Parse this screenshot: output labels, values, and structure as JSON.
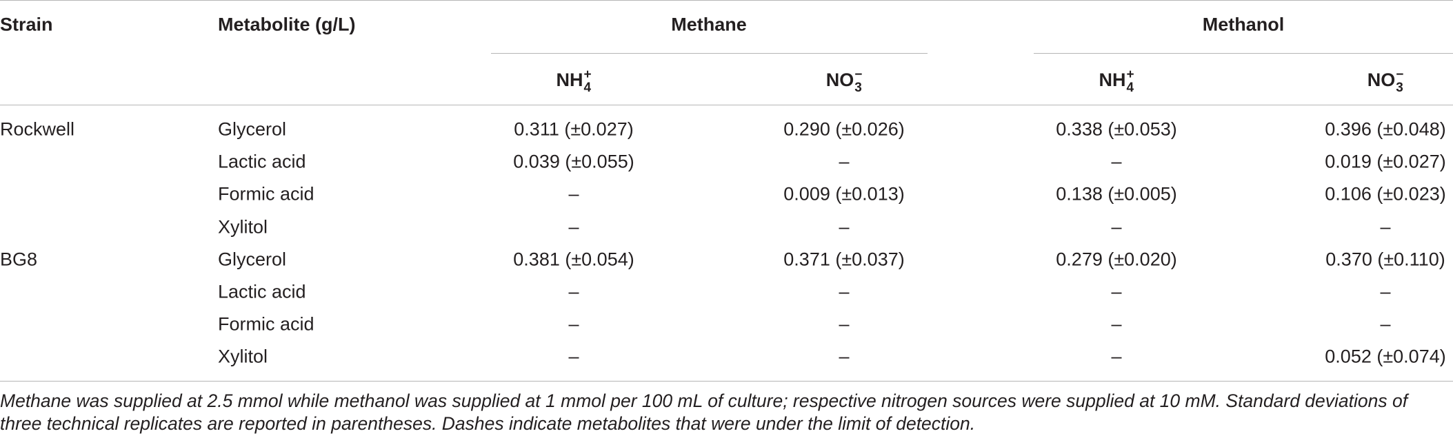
{
  "table": {
    "headers": [
      "Strain",
      "Metabolite (g/L)",
      "Methane",
      "Methanol"
    ],
    "subheaders": [
      {
        "base": "NH",
        "sub": "4",
        "sup": "+"
      },
      {
        "base": "NO",
        "sub": "3",
        "sup": "−"
      },
      {
        "base": "NH",
        "sub": "4",
        "sup": "+"
      },
      {
        "base": "NO",
        "sub": "3",
        "sup": "−"
      }
    ],
    "groups": [
      {
        "strain": "Rockwell",
        "rows": [
          {
            "metabolite": "Glycerol",
            "values": [
              "0.311 (±0.027)",
              "0.290 (±0.026)",
              "0.338 (±0.053)",
              "0.396 (±0.048)"
            ]
          },
          {
            "metabolite": "Lactic acid",
            "values": [
              "0.039 (±0.055)",
              "–",
              "–",
              "0.019 (±0.027)"
            ]
          },
          {
            "metabolite": "Formic acid",
            "values": [
              "–",
              "0.009 (±0.013)",
              "0.138 (±0.005)",
              "0.106 (±0.023)"
            ]
          },
          {
            "metabolite": "Xylitol",
            "values": [
              "–",
              "–",
              "–",
              "–"
            ]
          }
        ]
      },
      {
        "strain": "BG8",
        "rows": [
          {
            "metabolite": "Glycerol",
            "values": [
              "0.381 (±0.054)",
              "0.371 (±0.037)",
              "0.279 (±0.020)",
              "0.370 (±0.110)"
            ]
          },
          {
            "metabolite": "Lactic acid",
            "values": [
              "–",
              "–",
              "–",
              "–"
            ]
          },
          {
            "metabolite": "Formic acid",
            "values": [
              "–",
              "–",
              "–",
              "–"
            ]
          },
          {
            "metabolite": "Xylitol",
            "values": [
              "–",
              "–",
              "–",
              "0.052 (±0.074)"
            ]
          }
        ]
      }
    ],
    "footnote": "Methane was supplied at 2.5 mmol while methanol was supplied at 1 mmol per 100 mL of culture; respective nitrogen sources were supplied at 10 mM. Standard deviations of three technical replicates are reported in parentheses. Dashes indicate metabolites that were under the limit of detection."
  }
}
